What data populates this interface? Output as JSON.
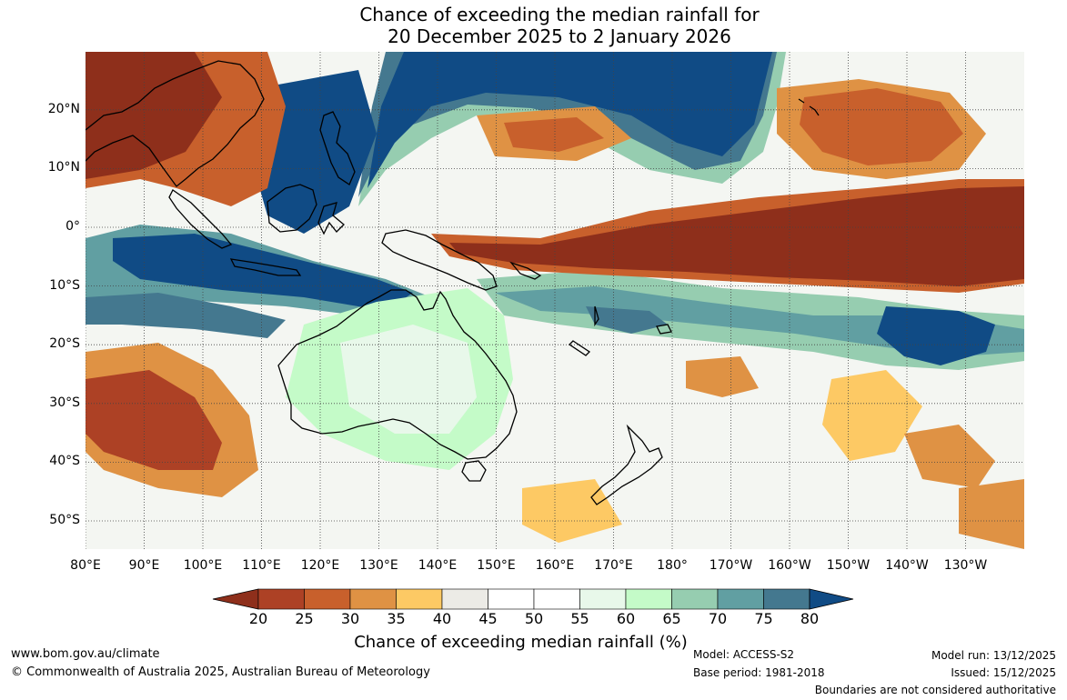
{
  "title": {
    "line1": "Chance of exceeding the median rainfall for",
    "line2": "20 December 2025 to 2 January 2026"
  },
  "map": {
    "lon_range": [
      80,
      240
    ],
    "lat_range": [
      -55,
      30
    ],
    "lat_ticks": [
      {
        "value": 20,
        "label": "20°N"
      },
      {
        "value": 10,
        "label": "10°N"
      },
      {
        "value": 0,
        "label": "0°"
      },
      {
        "value": -10,
        "label": "10°S"
      },
      {
        "value": -20,
        "label": "20°S"
      },
      {
        "value": -30,
        "label": "30°S"
      },
      {
        "value": -40,
        "label": "40°S"
      },
      {
        "value": -50,
        "label": "50°S"
      }
    ],
    "lon_ticks": [
      {
        "value": 80,
        "label": "80°E"
      },
      {
        "value": 90,
        "label": "90°E"
      },
      {
        "value": 100,
        "label": "100°E"
      },
      {
        "value": 110,
        "label": "110°E"
      },
      {
        "value": 120,
        "label": "120°E"
      },
      {
        "value": 130,
        "label": "130°E"
      },
      {
        "value": 140,
        "label": "140°E"
      },
      {
        "value": 150,
        "label": "150°E"
      },
      {
        "value": 160,
        "label": "160°E"
      },
      {
        "value": 170,
        "label": "170°E"
      },
      {
        "value": 180,
        "label": "180°"
      },
      {
        "value": 190,
        "label": "170°W"
      },
      {
        "value": 200,
        "label": "160°W"
      },
      {
        "value": 210,
        "label": "150°W"
      },
      {
        "value": 220,
        "label": "140°W"
      },
      {
        "value": 230,
        "label": "130°W"
      }
    ]
  },
  "colorbar": {
    "title": "Chance of exceeding median rainfall (%)",
    "ticks": [
      "20",
      "25",
      "30",
      "35",
      "40",
      "45",
      "50",
      "55",
      "60",
      "65",
      "70",
      "75",
      "80"
    ],
    "colors": [
      "#8e2f1b",
      "#ad4125",
      "#c8602c",
      "#df9244",
      "#fdc964",
      "#ecebe6",
      "#ffffff",
      "#ffffff",
      "#e8f8ea",
      "#c4fbc8",
      "#96cdb0",
      "#619fa2",
      "#44788f",
      "#104b85"
    ]
  },
  "footer": {
    "url": "www.bom.gov.au/climate",
    "copyright": "© Commonwealth of Australia 2025, Australian Bureau of Meteorology",
    "model": "Model: ACCESS-S2",
    "base_period": "Base period: 1981-2018",
    "model_run": "Model run: 13/12/2025",
    "issued": "Issued: 15/12/2025",
    "disclaimer": "Boundaries are not considered authoritative"
  }
}
